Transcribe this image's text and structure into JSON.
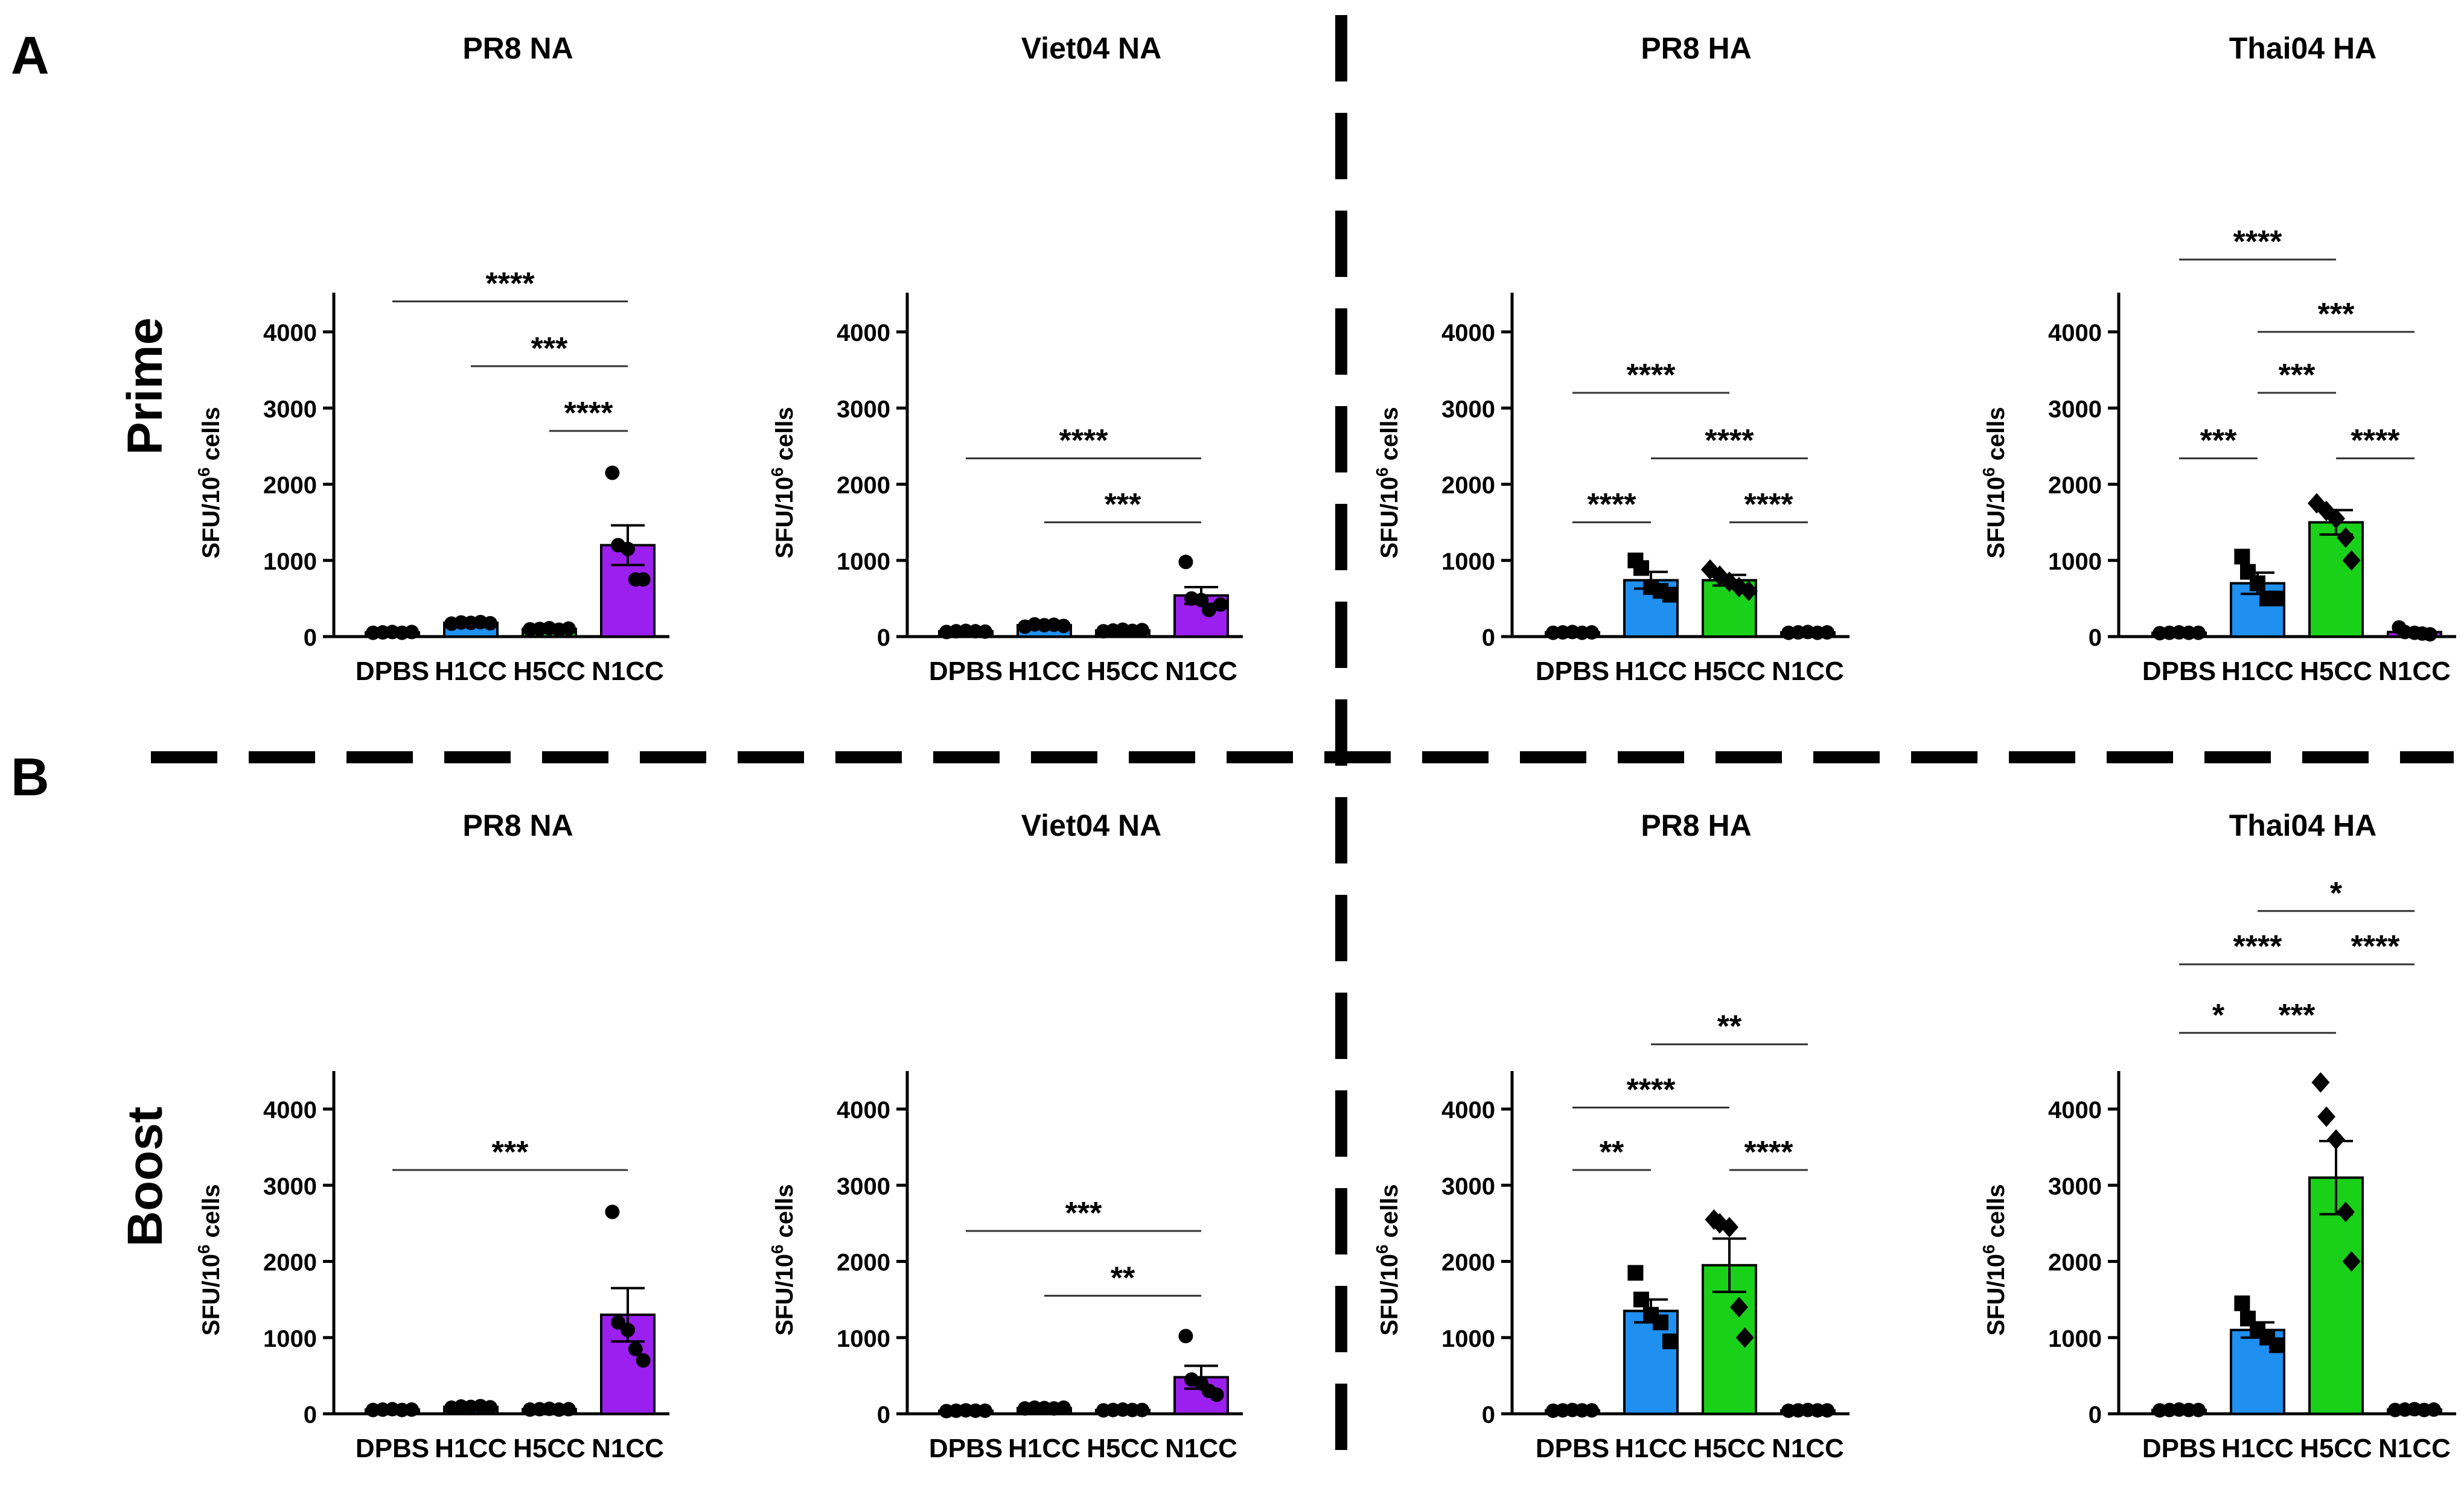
{
  "figure": {
    "panel_a_label": "A",
    "panel_b_label": "B",
    "row_prime_label": "Prime",
    "row_boost_label": "Boost"
  },
  "colors": {
    "DPBS": "#1a1a1a",
    "H1CC": "#1f8ff0",
    "H5CC": "#1ad11a",
    "N1CC": "#9b20f0",
    "axis": "#000000",
    "bracket": "#333333"
  },
  "chart_data": [
    {
      "id": "prime-pr8-na",
      "row": "Prime",
      "type": "bar",
      "title": "PR8 NA",
      "ylabel": "SFU/10^6 cells",
      "xlabel": "",
      "categories": [
        "DPBS",
        "H1CC",
        "H5CC",
        "N1CC"
      ],
      "ylim": [
        0,
        4500
      ],
      "yticks": [
        0,
        1000,
        2000,
        3000,
        4000
      ],
      "values": [
        55,
        180,
        100,
        1200
      ],
      "errors": [
        0,
        25,
        25,
        260
      ],
      "points": [
        [
          50,
          55,
          60,
          50,
          60
        ],
        [
          170,
          185,
          180,
          190,
          175
        ],
        [
          95,
          100,
          110,
          90,
          105
        ],
        [
          2150,
          1200,
          1150,
          750,
          750
        ]
      ],
      "markers": [
        "circle",
        "circle",
        "circle",
        "circle"
      ],
      "significance": [
        {
          "from": 0,
          "to": 3,
          "label": "****",
          "level": 4400
        },
        {
          "from": 1,
          "to": 3,
          "label": "***",
          "level": 3550
        },
        {
          "from": 2,
          "to": 3,
          "label": "****",
          "level": 2700
        }
      ]
    },
    {
      "id": "prime-viet04-na",
      "row": "Prime",
      "type": "bar",
      "title": "Viet04 NA",
      "ylabel": "SFU/10^6 cells",
      "xlabel": "",
      "categories": [
        "DPBS",
        "H1CC",
        "H5CC",
        "N1CC"
      ],
      "ylim": [
        0,
        4500
      ],
      "yticks": [
        0,
        1000,
        2000,
        3000,
        4000
      ],
      "values": [
        70,
        150,
        80,
        540
      ],
      "errors": [
        0,
        20,
        15,
        110
      ],
      "points": [
        [
          60,
          70,
          75,
          70,
          65
        ],
        [
          130,
          160,
          150,
          155,
          140
        ],
        [
          70,
          80,
          90,
          75,
          85
        ],
        [
          980,
          500,
          480,
          350,
          420
        ]
      ],
      "markers": [
        "circle",
        "circle",
        "circle",
        "circle"
      ],
      "significance": [
        {
          "from": 0,
          "to": 3,
          "label": "****",
          "level": 2340
        },
        {
          "from": 1,
          "to": 3,
          "label": "***",
          "level": 1500
        }
      ]
    },
    {
      "id": "prime-pr8-ha",
      "row": "Prime",
      "type": "bar",
      "title": "PR8 HA",
      "ylabel": "SFU/10^6 cells",
      "xlabel": "",
      "categories": [
        "DPBS",
        "H1CC",
        "H5CC",
        "N1CC"
      ],
      "ylim": [
        0,
        4500
      ],
      "yticks": [
        0,
        1000,
        2000,
        3000,
        4000
      ],
      "values": [
        55,
        740,
        740,
        55
      ],
      "errors": [
        0,
        110,
        70,
        0
      ],
      "points": [
        [
          50,
          55,
          60,
          50,
          55
        ],
        [
          1000,
          900,
          650,
          600,
          550
        ],
        [
          880,
          800,
          720,
          650,
          600
        ],
        [
          50,
          55,
          60,
          50,
          55
        ]
      ],
      "markers": [
        "circle",
        "square",
        "diamond",
        "circle"
      ],
      "significance": [
        {
          "from": 0,
          "to": 2,
          "label": "****",
          "level": 3200
        },
        {
          "from": 1,
          "to": 3,
          "label": "****",
          "level": 2340
        },
        {
          "from": 0,
          "to": 1,
          "label": "****",
          "level": 1500
        },
        {
          "from": 2,
          "to": 3,
          "label": "****",
          "level": 1500
        }
      ]
    },
    {
      "id": "prime-thai04-ha",
      "row": "Prime",
      "type": "bar",
      "title": "Thai04 HA",
      "ylabel": "SFU/10^6 cells",
      "xlabel": "",
      "categories": [
        "DPBS",
        "H1CC",
        "H5CC",
        "N1CC"
      ],
      "ylim": [
        0,
        4500
      ],
      "yticks": [
        0,
        1000,
        2000,
        3000,
        4000
      ],
      "values": [
        50,
        700,
        1500,
        60
      ],
      "errors": [
        0,
        140,
        160,
        0
      ],
      "points": [
        [
          45,
          50,
          55,
          50,
          50
        ],
        [
          1050,
          850,
          700,
          500,
          500
        ],
        [
          1750,
          1650,
          1550,
          1300,
          1000
        ],
        [
          120,
          60,
          50,
          40,
          30
        ]
      ],
      "markers": [
        "circle",
        "square",
        "diamond",
        "circle"
      ],
      "significance": [
        {
          "from": 0,
          "to": 2,
          "label": "****",
          "level": 4950
        },
        {
          "from": 1,
          "to": 3,
          "label": "***",
          "level": 4000
        },
        {
          "from": 1,
          "to": 2,
          "label": "***",
          "level": 3200
        },
        {
          "from": 0,
          "to": 1,
          "label": "***",
          "level": 2340
        },
        {
          "from": 2,
          "to": 3,
          "label": "****",
          "level": 2340
        }
      ]
    },
    {
      "id": "boost-pr8-na",
      "row": "Boost",
      "type": "bar",
      "title": "PR8 NA",
      "ylabel": "SFU/10^6 cells",
      "xlabel": "",
      "categories": [
        "DPBS",
        "H1CC",
        "H5CC",
        "N1CC"
      ],
      "ylim": [
        0,
        4500
      ],
      "yticks": [
        0,
        1000,
        2000,
        3000,
        4000
      ],
      "values": [
        55,
        90,
        60,
        1300
      ],
      "errors": [
        0,
        15,
        10,
        350
      ],
      "points": [
        [
          50,
          55,
          60,
          50,
          55
        ],
        [
          80,
          95,
          90,
          100,
          85
        ],
        [
          55,
          60,
          65,
          55,
          60
        ],
        [
          2650,
          1200,
          1100,
          850,
          700
        ]
      ],
      "markers": [
        "circle",
        "circle",
        "circle",
        "circle"
      ],
      "significance": [
        {
          "from": 0,
          "to": 3,
          "label": "***",
          "level": 3200
        }
      ]
    },
    {
      "id": "boost-viet04-na",
      "row": "Boost",
      "type": "bar",
      "title": "Viet04 NA",
      "ylabel": "SFU/10^6 cells",
      "xlabel": "",
      "categories": [
        "DPBS",
        "H1CC",
        "H5CC",
        "N1CC"
      ],
      "ylim": [
        0,
        4500
      ],
      "yticks": [
        0,
        1000,
        2000,
        3000,
        4000
      ],
      "values": [
        40,
        75,
        50,
        480
      ],
      "errors": [
        0,
        10,
        10,
        150
      ],
      "points": [
        [
          35,
          40,
          45,
          40,
          40
        ],
        [
          70,
          80,
          75,
          70,
          80
        ],
        [
          45,
          50,
          55,
          50,
          50
        ],
        [
          1020,
          450,
          400,
          300,
          250
        ]
      ],
      "markers": [
        "circle",
        "circle",
        "circle",
        "circle"
      ],
      "significance": [
        {
          "from": 0,
          "to": 3,
          "label": "***",
          "level": 2400
        },
        {
          "from": 1,
          "to": 3,
          "label": "**",
          "level": 1550
        }
      ]
    },
    {
      "id": "boost-pr8-ha",
      "row": "Boost",
      "type": "bar",
      "title": "PR8 HA",
      "ylabel": "SFU/10^6 cells",
      "xlabel": "",
      "categories": [
        "DPBS",
        "H1CC",
        "H5CC",
        "N1CC"
      ],
      "ylim": [
        0,
        4500
      ],
      "yticks": [
        0,
        1000,
        2000,
        3000,
        4000
      ],
      "values": [
        45,
        1350,
        1950,
        45
      ],
      "errors": [
        0,
        150,
        350,
        0
      ],
      "points": [
        [
          40,
          45,
          50,
          45,
          45
        ],
        [
          1850,
          1500,
          1300,
          1200,
          950
        ],
        [
          2550,
          2500,
          2450,
          1400,
          1000
        ],
        [
          40,
          45,
          50,
          45,
          45
        ]
      ],
      "markers": [
        "circle",
        "square",
        "diamond",
        "circle"
      ],
      "significance": [
        {
          "from": 1,
          "to": 3,
          "label": "**",
          "level": 4850
        },
        {
          "from": 0,
          "to": 2,
          "label": "****",
          "level": 4020
        },
        {
          "from": 0,
          "to": 1,
          "label": "**",
          "level": 3200
        },
        {
          "from": 2,
          "to": 3,
          "label": "****",
          "level": 3200
        }
      ]
    },
    {
      "id": "boost-thai04-ha",
      "row": "Boost",
      "type": "bar",
      "title": "Thai04 HA",
      "ylabel": "SFU/10^6 cells",
      "xlabel": "",
      "categories": [
        "DPBS",
        "H1CC",
        "H5CC",
        "N1CC"
      ],
      "ylim": [
        0,
        4500
      ],
      "yticks": [
        0,
        1000,
        2000,
        3000,
        4000
      ],
      "values": [
        50,
        1100,
        3100,
        55
      ],
      "errors": [
        0,
        100,
        480,
        0
      ],
      "points": [
        [
          45,
          50,
          55,
          50,
          50
        ],
        [
          1450,
          1250,
          1100,
          1000,
          900
        ],
        [
          4350,
          3900,
          3600,
          2650,
          2000
        ],
        [
          50,
          55,
          60,
          50,
          55
        ]
      ],
      "markers": [
        "circle",
        "square",
        "diamond",
        "circle"
      ],
      "significance": [
        {
          "from": 1,
          "to": 3,
          "label": "*",
          "level": 6600
        },
        {
          "from": 0,
          "to": 2,
          "label": "****",
          "level": 5900
        },
        {
          "from": 2,
          "to": 3,
          "label": "****",
          "level": 5900
        },
        {
          "from": 0,
          "to": 1,
          "label": "*",
          "level": 5000
        },
        {
          "from": 1,
          "to": 2,
          "label": "***",
          "level": 5000
        }
      ]
    }
  ]
}
